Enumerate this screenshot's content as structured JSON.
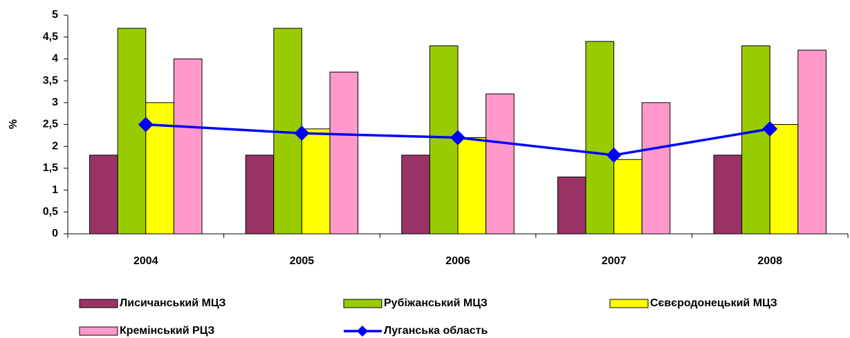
{
  "chart_data": {
    "type": "bar",
    "y_label": "%",
    "categories": [
      "2004",
      "2005",
      "2006",
      "2007",
      "2008"
    ],
    "series": [
      {
        "name": "Лисичанський МЦЗ",
        "color": "#993366",
        "values": [
          1.8,
          1.8,
          1.8,
          1.3,
          1.8
        ]
      },
      {
        "name": "Рубіжанський МЦЗ",
        "color": "#99cc00",
        "values": [
          4.7,
          4.7,
          4.3,
          4.4,
          4.3
        ]
      },
      {
        "name": "Сєвєродонецький МЦЗ",
        "color": "#ffff00",
        "values": [
          3.0,
          2.4,
          2.2,
          1.7,
          2.5
        ]
      },
      {
        "name": "Кремінський РЦЗ",
        "color": "#ff99cc",
        "values": [
          4.0,
          3.7,
          3.2,
          3.0,
          4.2
        ]
      },
      {
        "name": "Луганська область",
        "color": "#0000ff",
        "type": "line",
        "values": [
          2.5,
          2.3,
          2.2,
          1.8,
          2.4
        ]
      }
    ],
    "ylim": [
      0,
      5
    ],
    "yticks": [
      0,
      {
        "value": 0.5,
        "label": "0,5"
      },
      1,
      {
        "value": 1.5,
        "label": "1,5"
      },
      2,
      {
        "value": 2.5,
        "label": "2,5"
      },
      3,
      {
        "value": 3.5,
        "label": "3,5"
      },
      4,
      {
        "value": 4.5,
        "label": "4,5"
      },
      5
    ],
    "grid": false
  }
}
